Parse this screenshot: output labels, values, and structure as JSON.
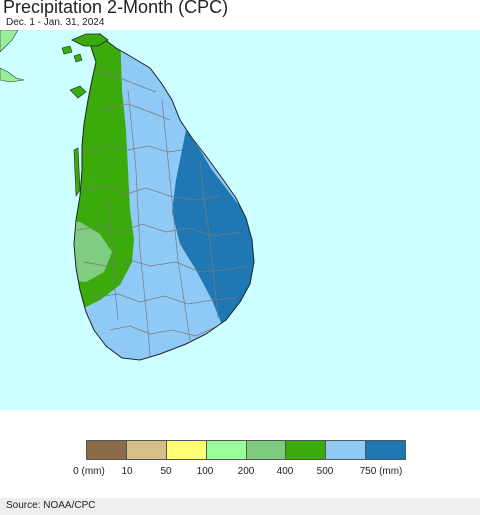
{
  "header": {
    "title": "Precipitation 2-Month (CPC)",
    "subtitle": "Dec. 1 - Jan. 31, 2024"
  },
  "map": {
    "region": "Sri Lanka",
    "ocean_color": "#ccffff",
    "zones": [
      {
        "name": "northwest-coast",
        "class": "400-500",
        "color": "#3aab0a"
      },
      {
        "name": "central-west",
        "class": "500-750",
        "color": "#8ecaf5"
      },
      {
        "name": "east-coast",
        "class": "750+",
        "color": "#1f78b4"
      },
      {
        "name": "west-coast-patch",
        "class": "200-400",
        "color": "#80cc80"
      },
      {
        "name": "india-tip",
        "class": "100-200",
        "color": "#99ee99"
      }
    ]
  },
  "legend": {
    "colors": [
      "#8b6b4a",
      "#d4bf88",
      "#ffff73",
      "#99ff99",
      "#7dcc7d",
      "#3aab0a",
      "#8ecaf5",
      "#1f78b4"
    ],
    "labels": [
      "0 (mm)",
      "10",
      "50",
      "100",
      "200",
      "400",
      "500",
      "750 (mm)"
    ]
  },
  "footer": {
    "source": "Source: NOAA/CPC"
  }
}
